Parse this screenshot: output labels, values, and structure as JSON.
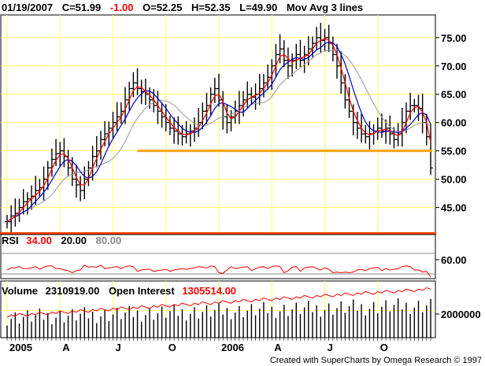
{
  "header": {
    "date": "01/19/2007",
    "close": "C=51.99",
    "change": "-1.00",
    "open": "O=52.25",
    "high": "H=52.35",
    "low": "L=49.90",
    "study": "Mov Avg 3 lines"
  },
  "rsi_header": {
    "label": "RSI",
    "value": "34.00",
    "lower": "20.00",
    "upper": "80.00"
  },
  "volume_header": {
    "label": "Volume",
    "volume_value": "2310919.00",
    "oi_label": "Open Interest",
    "oi_value": "1305514.00"
  },
  "credit": "Created with SuperCharts by Omega Research © 1997",
  "colors": {
    "grid": "#ffff66",
    "price": "#000000",
    "ma_short": "#ff0000",
    "ma_mid": "#0000cc",
    "ma_long": "#999999",
    "support": "#ffa500",
    "divider": "#ff4400",
    "oi": "#ff0000"
  },
  "chart_data": {
    "type": "ohlc",
    "price_ticks": [
      "75.00",
      "70.00",
      "65.00",
      "60.00",
      "55.00",
      "50.00",
      "45.00"
    ],
    "price_tick_values": [
      75,
      70,
      65,
      60,
      55,
      50,
      45
    ],
    "ylim": [
      40.5,
      79
    ],
    "rsi_tick": "60.00",
    "rsi_tick_value": 60,
    "rsi_ylim": [
      20,
      80
    ],
    "volume_tick": "2000000",
    "volume_tick_value": 2000000,
    "volume_ylim": [
      0,
      4200000
    ],
    "x_labels": [
      "2005",
      "A",
      "J",
      "O",
      "2006",
      "A",
      "J",
      "O"
    ],
    "x_label_weeks": [
      1,
      14,
      27,
      40,
      53,
      66,
      79,
      92
    ],
    "weeks": 105,
    "support_level": 55,
    "support_from_week": 32,
    "closes": [
      42.5,
      43.5,
      44,
      45,
      46,
      46.5,
      47,
      48,
      48.5,
      50,
      52,
      53.5,
      54.5,
      55,
      54,
      52,
      50,
      49,
      48,
      50,
      52,
      54,
      55,
      57,
      58,
      59,
      60,
      61,
      62,
      64,
      66,
      67,
      66,
      65.5,
      65,
      64,
      63,
      62,
      61,
      60,
      59,
      58.5,
      58,
      57.5,
      58,
      58.5,
      59,
      60,
      62,
      63,
      65,
      66,
      64,
      61,
      60,
      61,
      62,
      63,
      64,
      65,
      64.5,
      65,
      66,
      67,
      68,
      70,
      72,
      73,
      71,
      70,
      71,
      72,
      71,
      72,
      73,
      74,
      75,
      74.5,
      75,
      74,
      72,
      70,
      67,
      64,
      62,
      60,
      59,
      58,
      57.5,
      58,
      58.5,
      59,
      58.5,
      59,
      58,
      57,
      58,
      60,
      62,
      63,
      63,
      62.5,
      60,
      57.5,
      51.99
    ]
  }
}
